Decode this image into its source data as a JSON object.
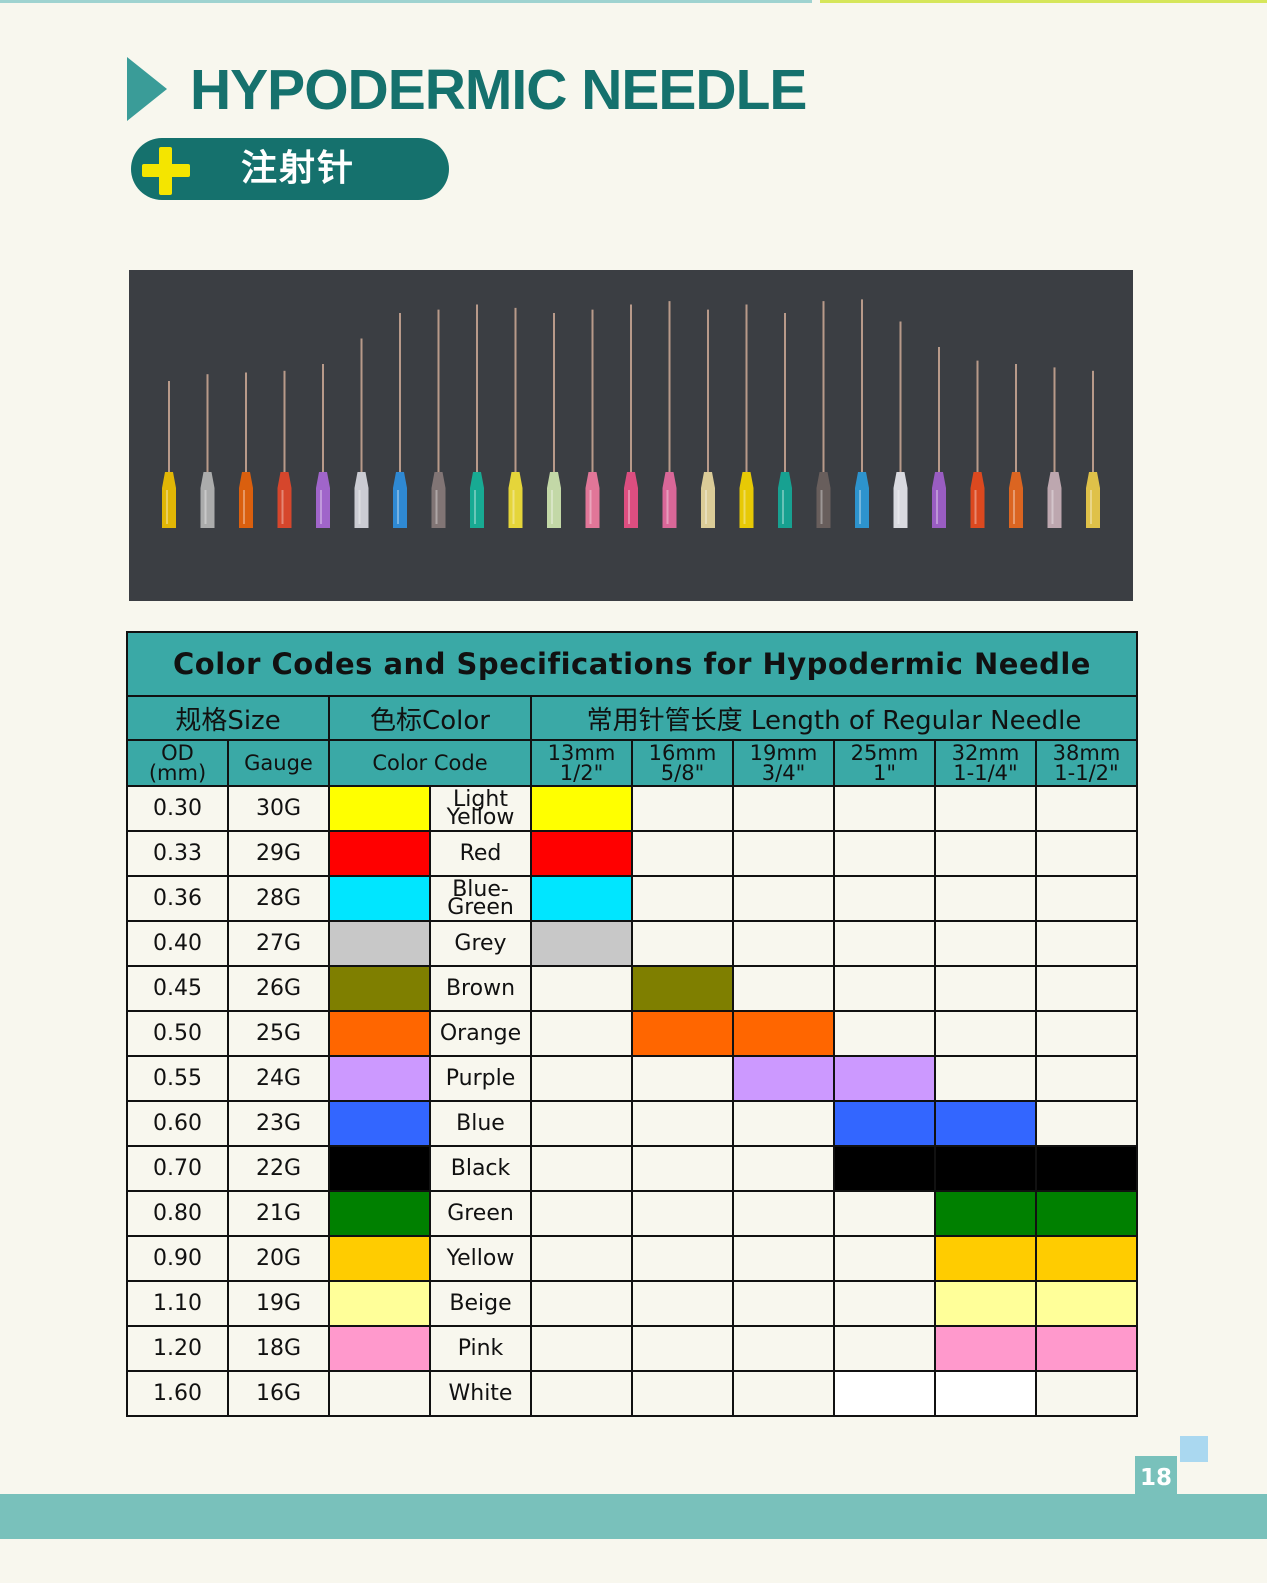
{
  "header": {
    "title": "HYPODERMIC NEEDLE",
    "subtitle_cn": "注射针"
  },
  "needle_colors": [
    "#f0c000",
    "#b5b5b5",
    "#e8620a",
    "#e4462a",
    "#a968d6",
    "#d8d8e0",
    "#2f8fe0",
    "#88797a",
    "#16b39a",
    "#f4e23a",
    "#cfe5b0",
    "#f07ba0",
    "#ea4f86",
    "#e76aa0",
    "#e9d8a0",
    "#f6d500",
    "#15a998",
    "#6c615e",
    "#2c9ad9",
    "#e7e7ee",
    "#a260cd",
    "#ea4a1c",
    "#e9681e",
    "#c9b0b8",
    "#eecc4a"
  ],
  "table": {
    "caption": "Color Codes and Specifications for Hypodermic Needle",
    "headers": {
      "size": "规格Size",
      "color": "色标Color",
      "length": "常用针管长度 Length of Regular Needle",
      "od_line1": "OD",
      "od_line2": "(mm)",
      "gauge": "Gauge",
      "color_code": "Color Code"
    },
    "lengths": [
      {
        "mm": "13mm",
        "inch": "1/2\""
      },
      {
        "mm": "16mm",
        "inch": "5/8\""
      },
      {
        "mm": "19mm",
        "inch": "3/4\""
      },
      {
        "mm": "25mm",
        "inch": "1\""
      },
      {
        "mm": "32mm",
        "inch": "1-1/4\""
      },
      {
        "mm": "38mm",
        "inch": "1-1/2\""
      }
    ],
    "rows": [
      {
        "od": "0.30",
        "gauge": "30G",
        "color": "#ffff00",
        "name": [
          "Light",
          "Yellow"
        ],
        "lengths": [
          1,
          0,
          0,
          0,
          0,
          0
        ]
      },
      {
        "od": "0.33",
        "gauge": "29G",
        "color": "#ff0000",
        "name": [
          "Red"
        ],
        "lengths": [
          1,
          0,
          0,
          0,
          0,
          0
        ]
      },
      {
        "od": "0.36",
        "gauge": "28G",
        "color": "#00e6ff",
        "name": [
          "Blue-",
          "Green"
        ],
        "lengths": [
          1,
          0,
          0,
          0,
          0,
          0
        ]
      },
      {
        "od": "0.40",
        "gauge": "27G",
        "color": "#c8c8c8",
        "name": [
          "Grey"
        ],
        "lengths": [
          1,
          0,
          0,
          0,
          0,
          0
        ]
      },
      {
        "od": "0.45",
        "gauge": "26G",
        "color": "#7f7f00",
        "name": [
          "Brown"
        ],
        "lengths": [
          0,
          1,
          0,
          0,
          0,
          0
        ]
      },
      {
        "od": "0.50",
        "gauge": "25G",
        "color": "#ff6600",
        "name": [
          "Orange"
        ],
        "lengths": [
          0,
          1,
          1,
          0,
          0,
          0
        ]
      },
      {
        "od": "0.55",
        "gauge": "24G",
        "color": "#cc99ff",
        "name": [
          "Purple"
        ],
        "lengths": [
          0,
          0,
          1,
          1,
          0,
          0
        ]
      },
      {
        "od": "0.60",
        "gauge": "23G",
        "color": "#3366ff",
        "name": [
          "Blue"
        ],
        "lengths": [
          0,
          0,
          0,
          1,
          1,
          0
        ]
      },
      {
        "od": "0.70",
        "gauge": "22G",
        "color": "#000000",
        "name": [
          "Black"
        ],
        "lengths": [
          0,
          0,
          0,
          1,
          1,
          1
        ]
      },
      {
        "od": "0.80",
        "gauge": "21G",
        "color": "#008000",
        "name": [
          "Green"
        ],
        "lengths": [
          0,
          0,
          0,
          0,
          1,
          1
        ]
      },
      {
        "od": "0.90",
        "gauge": "20G",
        "color": "#ffcc00",
        "name": [
          "Yellow"
        ],
        "lengths": [
          0,
          0,
          0,
          0,
          1,
          1
        ]
      },
      {
        "od": "1.10",
        "gauge": "19G",
        "color": "#ffff99",
        "name": [
          "Beige"
        ],
        "lengths": [
          0,
          0,
          0,
          0,
          1,
          1
        ]
      },
      {
        "od": "1.20",
        "gauge": "18G",
        "color": "#ff99cc",
        "name": [
          "Pink"
        ],
        "lengths": [
          0,
          0,
          0,
          0,
          1,
          1
        ]
      },
      {
        "od": "1.60",
        "gauge": "16G",
        "color": "#ffffff",
        "name": [
          "White"
        ],
        "lengths": [
          0,
          0,
          0,
          1,
          1,
          0
        ]
      }
    ]
  },
  "page_number": "18"
}
